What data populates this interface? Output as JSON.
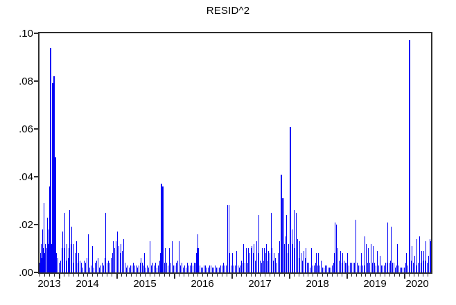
{
  "chart_data": {
    "type": "bar",
    "title": "RESID^2",
    "series_name": "RESID^2",
    "xlabel": "",
    "ylabel": "",
    "x_unit": "decimal_year",
    "xlim": [
      2013.663,
      2020.473
    ],
    "ylim": [
      0,
      0.1
    ],
    "grid": false,
    "legend": "none",
    "bar_color": "#0101F6",
    "frame_color": "#2E2E2E",
    "text_color": "#000000",
    "background_color": "#FFFFFF",
    "y_tick_labels": [
      ".10",
      ".08",
      ".06",
      ".04",
      ".02",
      ".00"
    ],
    "y_tick_values": [
      0.1,
      0.08,
      0.06,
      0.04,
      0.02,
      0.0
    ],
    "x_tick_labels": [
      "2013",
      "2014",
      "2015",
      "2016",
      "2017",
      "2018",
      "2019",
      "2020"
    ],
    "x_major_tick_years": [
      2014,
      2015,
      2016,
      2017,
      2018,
      2019,
      2020
    ],
    "minor_ticks_per_year": 12,
    "points": [
      [
        2013.663,
        0.004
      ],
      [
        2013.675,
        0.008
      ],
      [
        2013.687,
        0.012
      ],
      [
        2013.699,
        0.006
      ],
      [
        2013.711,
        0.018
      ],
      [
        2013.723,
        0.01
      ],
      [
        2013.735,
        0.029
      ],
      [
        2013.747,
        0.008
      ],
      [
        2013.759,
        0.012
      ],
      [
        2013.783,
        0.01
      ],
      [
        2013.796,
        0.023
      ],
      [
        2013.808,
        0.012
      ],
      [
        2013.82,
        0.018
      ],
      [
        2013.832,
        0.036
      ],
      [
        2013.844,
        0.094
      ],
      [
        2013.856,
        0.02
      ],
      [
        2013.868,
        0.012
      ],
      [
        2013.88,
        0.079
      ],
      [
        2013.892,
        0.03
      ],
      [
        2013.904,
        0.082
      ],
      [
        2013.916,
        0.016
      ],
      [
        2013.928,
        0.048
      ],
      [
        2013.94,
        0.02
      ],
      [
        2013.952,
        0.008
      ],
      [
        2013.976,
        0.006
      ],
      [
        2014.0,
        0.004
      ],
      [
        2014.024,
        0.005
      ],
      [
        2014.048,
        0.01
      ],
      [
        2014.06,
        0.017
      ],
      [
        2014.084,
        0.01
      ],
      [
        2014.096,
        0.025
      ],
      [
        2014.12,
        0.005
      ],
      [
        2014.133,
        0.012
      ],
      [
        2014.157,
        0.006
      ],
      [
        2014.169,
        0.01
      ],
      [
        2014.181,
        0.026
      ],
      [
        2014.205,
        0.012
      ],
      [
        2014.217,
        0.019
      ],
      [
        2014.241,
        0.004
      ],
      [
        2014.253,
        0.012
      ],
      [
        2014.277,
        0.008
      ],
      [
        2014.301,
        0.013
      ],
      [
        2014.325,
        0.004
      ],
      [
        2014.337,
        0.008
      ],
      [
        2014.361,
        0.005
      ],
      [
        2014.386,
        0.004
      ],
      [
        2014.41,
        0.002
      ],
      [
        2014.434,
        0.005
      ],
      [
        2014.458,
        0.004
      ],
      [
        2014.482,
        0.006
      ],
      [
        2014.506,
        0.016
      ],
      [
        2014.53,
        0.002
      ],
      [
        2014.554,
        0.003
      ],
      [
        2014.578,
        0.011
      ],
      [
        2014.602,
        0.002
      ],
      [
        2014.627,
        0.004
      ],
      [
        2014.651,
        0.005
      ],
      [
        2014.675,
        0.006
      ],
      [
        2014.699,
        0.002
      ],
      [
        2014.723,
        0.003
      ],
      [
        2014.747,
        0.004
      ],
      [
        2014.771,
        0.003
      ],
      [
        2014.795,
        0.006
      ],
      [
        2014.807,
        0.025
      ],
      [
        2014.831,
        0.004
      ],
      [
        2014.855,
        0.005
      ],
      [
        2014.88,
        0.004
      ],
      [
        2014.904,
        0.006
      ],
      [
        2014.928,
        0.008
      ],
      [
        2014.94,
        0.013
      ],
      [
        2014.964,
        0.01
      ],
      [
        2014.988,
        0.013
      ],
      [
        2015.012,
        0.017
      ],
      [
        2015.036,
        0.011
      ],
      [
        2015.06,
        0.008
      ],
      [
        2015.072,
        0.012
      ],
      [
        2015.096,
        0.009
      ],
      [
        2015.12,
        0.014
      ],
      [
        2015.145,
        0.004
      ],
      [
        2015.169,
        0.002
      ],
      [
        2015.193,
        0.003
      ],
      [
        2015.217,
        0.002
      ],
      [
        2015.241,
        0.003
      ],
      [
        2015.265,
        0.003
      ],
      [
        2015.289,
        0.004
      ],
      [
        2015.313,
        0.003
      ],
      [
        2015.337,
        0.003
      ],
      [
        2015.361,
        0.002
      ],
      [
        2015.386,
        0.003
      ],
      [
        2015.41,
        0.004
      ],
      [
        2015.422,
        0.006
      ],
      [
        2015.446,
        0.004
      ],
      [
        2015.47,
        0.003
      ],
      [
        2015.482,
        0.008
      ],
      [
        2015.506,
        0.002
      ],
      [
        2015.53,
        0.003
      ],
      [
        2015.554,
        0.002
      ],
      [
        2015.578,
        0.013
      ],
      [
        2015.602,
        0.003
      ],
      [
        2015.627,
        0.004
      ],
      [
        2015.651,
        0.003
      ],
      [
        2015.675,
        0.004
      ],
      [
        2015.699,
        0.002
      ],
      [
        2015.723,
        0.003
      ],
      [
        2015.747,
        0.005
      ],
      [
        2015.759,
        0.008
      ],
      [
        2015.771,
        0.037
      ],
      [
        2015.783,
        0.02
      ],
      [
        2015.795,
        0.036
      ],
      [
        2015.807,
        0.012
      ],
      [
        2015.831,
        0.004
      ],
      [
        2015.843,
        0.01
      ],
      [
        2015.867,
        0.004
      ],
      [
        2015.892,
        0.003
      ],
      [
        2015.916,
        0.01
      ],
      [
        2015.94,
        0.004
      ],
      [
        2015.964,
        0.013
      ],
      [
        2015.988,
        0.003
      ],
      [
        2016.012,
        0.003
      ],
      [
        2016.036,
        0.004
      ],
      [
        2016.06,
        0.005
      ],
      [
        2016.084,
        0.013
      ],
      [
        2016.108,
        0.003
      ],
      [
        2016.133,
        0.004
      ],
      [
        2016.157,
        0.002
      ],
      [
        2016.181,
        0.003
      ],
      [
        2016.205,
        0.002
      ],
      [
        2016.229,
        0.004
      ],
      [
        2016.253,
        0.003
      ],
      [
        2016.277,
        0.003
      ],
      [
        2016.301,
        0.004
      ],
      [
        2016.325,
        0.003
      ],
      [
        2016.349,
        0.004
      ],
      [
        2016.373,
        0.004
      ],
      [
        2016.386,
        0.008
      ],
      [
        2016.398,
        0.01
      ],
      [
        2016.41,
        0.016
      ],
      [
        2016.422,
        0.01
      ],
      [
        2016.446,
        0.003
      ],
      [
        2016.47,
        0.002
      ],
      [
        2016.494,
        0.002
      ],
      [
        2016.518,
        0.003
      ],
      [
        2016.542,
        0.003
      ],
      [
        2016.566,
        0.002
      ],
      [
        2016.59,
        0.002
      ],
      [
        2016.614,
        0.003
      ],
      [
        2016.639,
        0.003
      ],
      [
        2016.663,
        0.002
      ],
      [
        2016.687,
        0.002
      ],
      [
        2016.711,
        0.003
      ],
      [
        2016.735,
        0.002
      ],
      [
        2016.759,
        0.002
      ],
      [
        2016.783,
        0.002
      ],
      [
        2016.807,
        0.003
      ],
      [
        2016.831,
        0.003
      ],
      [
        2016.855,
        0.004
      ],
      [
        2016.88,
        0.003
      ],
      [
        2016.904,
        0.003
      ],
      [
        2016.928,
        0.028
      ],
      [
        2016.952,
        0.028
      ],
      [
        2016.964,
        0.008
      ],
      [
        2016.988,
        0.003
      ],
      [
        2017.012,
        0.008
      ],
      [
        2017.036,
        0.003
      ],
      [
        2017.06,
        0.003
      ],
      [
        2017.084,
        0.009
      ],
      [
        2017.108,
        0.003
      ],
      [
        2017.133,
        0.002
      ],
      [
        2017.157,
        0.003
      ],
      [
        2017.169,
        0.005
      ],
      [
        2017.193,
        0.004
      ],
      [
        2017.205,
        0.012
      ],
      [
        2017.229,
        0.004
      ],
      [
        2017.253,
        0.01
      ],
      [
        2017.277,
        0.004
      ],
      [
        2017.289,
        0.01
      ],
      [
        2017.313,
        0.008
      ],
      [
        2017.337,
        0.01
      ],
      [
        2017.349,
        0.011
      ],
      [
        2017.373,
        0.008
      ],
      [
        2017.386,
        0.012
      ],
      [
        2017.41,
        0.005
      ],
      [
        2017.434,
        0.013
      ],
      [
        2017.458,
        0.008
      ],
      [
        2017.47,
        0.024
      ],
      [
        2017.494,
        0.005
      ],
      [
        2017.518,
        0.004
      ],
      [
        2017.53,
        0.01
      ],
      [
        2017.554,
        0.005
      ],
      [
        2017.566,
        0.01
      ],
      [
        2017.59,
        0.008
      ],
      [
        2017.602,
        0.012
      ],
      [
        2017.627,
        0.005
      ],
      [
        2017.639,
        0.009
      ],
      [
        2017.663,
        0.008
      ],
      [
        2017.687,
        0.025
      ],
      [
        2017.699,
        0.01
      ],
      [
        2017.723,
        0.005
      ],
      [
        2017.735,
        0.008
      ],
      [
        2017.759,
        0.006
      ],
      [
        2017.783,
        0.004
      ],
      [
        2017.807,
        0.008
      ],
      [
        2017.831,
        0.013
      ],
      [
        2017.855,
        0.041
      ],
      [
        2017.867,
        0.015
      ],
      [
        2017.88,
        0.031
      ],
      [
        2017.904,
        0.031
      ],
      [
        2017.916,
        0.012
      ],
      [
        2017.94,
        0.015
      ],
      [
        2017.952,
        0.024
      ],
      [
        2017.976,
        0.008
      ],
      [
        2017.988,
        0.012
      ],
      [
        2018.012,
        0.061
      ],
      [
        2018.024,
        0.015
      ],
      [
        2018.048,
        0.018
      ],
      [
        2018.06,
        0.012
      ],
      [
        2018.084,
        0.026
      ],
      [
        2018.096,
        0.01
      ],
      [
        2018.12,
        0.025
      ],
      [
        2018.145,
        0.014
      ],
      [
        2018.169,
        0.006
      ],
      [
        2018.181,
        0.013
      ],
      [
        2018.205,
        0.008
      ],
      [
        2018.229,
        0.005
      ],
      [
        2018.253,
        0.009
      ],
      [
        2018.277,
        0.006
      ],
      [
        2018.289,
        0.01
      ],
      [
        2018.313,
        0.004
      ],
      [
        2018.337,
        0.004
      ],
      [
        2018.361,
        0.002
      ],
      [
        2018.386,
        0.01
      ],
      [
        2018.41,
        0.003
      ],
      [
        2018.434,
        0.003
      ],
      [
        2018.458,
        0.004
      ],
      [
        2018.47,
        0.008
      ],
      [
        2018.494,
        0.003
      ],
      [
        2018.506,
        0.008
      ],
      [
        2018.53,
        0.003
      ],
      [
        2018.554,
        0.005
      ],
      [
        2018.578,
        0.002
      ],
      [
        2018.602,
        0.002
      ],
      [
        2018.627,
        0.003
      ],
      [
        2018.651,
        0.003
      ],
      [
        2018.675,
        0.002
      ],
      [
        2018.699,
        0.002
      ],
      [
        2018.723,
        0.002
      ],
      [
        2018.747,
        0.003
      ],
      [
        2018.771,
        0.004
      ],
      [
        2018.783,
        0.008
      ],
      [
        2018.795,
        0.021
      ],
      [
        2018.819,
        0.02
      ],
      [
        2018.843,
        0.01
      ],
      [
        2018.867,
        0.005
      ],
      [
        2018.892,
        0.009
      ],
      [
        2018.916,
        0.004
      ],
      [
        2018.928,
        0.008
      ],
      [
        2018.952,
        0.005
      ],
      [
        2018.976,
        0.004
      ],
      [
        2019.0,
        0.004
      ],
      [
        2019.012,
        0.008
      ],
      [
        2019.036,
        0.003
      ],
      [
        2019.06,
        0.004
      ],
      [
        2019.084,
        0.004
      ],
      [
        2019.108,
        0.004
      ],
      [
        2019.133,
        0.004
      ],
      [
        2019.157,
        0.022
      ],
      [
        2019.181,
        0.004
      ],
      [
        2019.205,
        0.003
      ],
      [
        2019.229,
        0.003
      ],
      [
        2019.253,
        0.008
      ],
      [
        2019.277,
        0.003
      ],
      [
        2019.301,
        0.003
      ],
      [
        2019.313,
        0.015
      ],
      [
        2019.337,
        0.012
      ],
      [
        2019.361,
        0.004
      ],
      [
        2019.373,
        0.01
      ],
      [
        2019.398,
        0.004
      ],
      [
        2019.422,
        0.012
      ],
      [
        2019.446,
        0.004
      ],
      [
        2019.458,
        0.011
      ],
      [
        2019.482,
        0.004
      ],
      [
        2019.506,
        0.003
      ],
      [
        2019.53,
        0.009
      ],
      [
        2019.554,
        0.003
      ],
      [
        2019.578,
        0.007
      ],
      [
        2019.602,
        0.003
      ],
      [
        2019.627,
        0.003
      ],
      [
        2019.651,
        0.003
      ],
      [
        2019.675,
        0.004
      ],
      [
        2019.699,
        0.004
      ],
      [
        2019.711,
        0.021
      ],
      [
        2019.735,
        0.004
      ],
      [
        2019.759,
        0.005
      ],
      [
        2019.771,
        0.019
      ],
      [
        2019.795,
        0.004
      ],
      [
        2019.819,
        0.004
      ],
      [
        2019.843,
        0.002
      ],
      [
        2019.867,
        0.003
      ],
      [
        2019.88,
        0.012
      ],
      [
        2019.904,
        0.003
      ],
      [
        2019.928,
        0.002
      ],
      [
        2019.952,
        0.002
      ],
      [
        2019.976,
        0.002
      ],
      [
        2020.0,
        0.002
      ],
      [
        2020.024,
        0.004
      ],
      [
        2020.036,
        0.008
      ],
      [
        2020.06,
        0.003
      ],
      [
        2020.084,
        0.097
      ],
      [
        2020.096,
        0.026
      ],
      [
        2020.12,
        0.005
      ],
      [
        2020.133,
        0.011
      ],
      [
        2020.157,
        0.004
      ],
      [
        2020.181,
        0.007
      ],
      [
        2020.205,
        0.003
      ],
      [
        2020.217,
        0.014
      ],
      [
        2020.241,
        0.004
      ],
      [
        2020.265,
        0.015
      ],
      [
        2020.289,
        0.004
      ],
      [
        2020.301,
        0.009
      ],
      [
        2020.325,
        0.005
      ],
      [
        2020.337,
        0.009
      ],
      [
        2020.361,
        0.005
      ],
      [
        2020.373,
        0.013
      ],
      [
        2020.398,
        0.004
      ],
      [
        2020.422,
        0.007
      ],
      [
        2020.446,
        0.014
      ],
      [
        2020.458,
        0.013
      ]
    ]
  }
}
